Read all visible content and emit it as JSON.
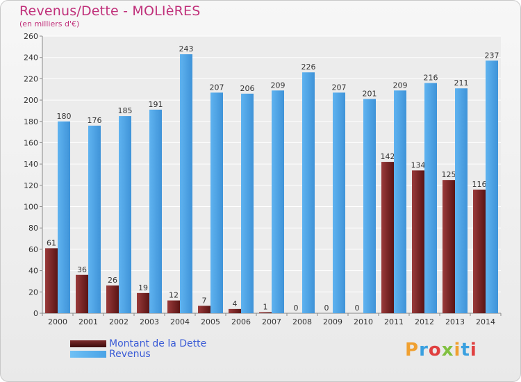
{
  "title": "Revenus/Dette - MOLIèRES",
  "subtitle": "(en milliers d'€)",
  "logo": "Proxiti",
  "colors": {
    "debt": "#7b2a2a",
    "revenue": "#4aa3e6",
    "title": "#c0307a",
    "legend_text": "#3a5bd6"
  },
  "chart_data": {
    "type": "bar",
    "categories": [
      "2000",
      "2001",
      "2002",
      "2003",
      "2004",
      "2005",
      "2006",
      "2007",
      "2008",
      "2009",
      "2010",
      "2011",
      "2012",
      "2013",
      "2014"
    ],
    "series": [
      {
        "name": "Montant de la Dette",
        "values": [
          61,
          36,
          26,
          19,
          12,
          7,
          4,
          1,
          0,
          0,
          0,
          142,
          134,
          125,
          116
        ]
      },
      {
        "name": "Revenus",
        "values": [
          180,
          176,
          185,
          191,
          243,
          207,
          206,
          209,
          226,
          207,
          201,
          209,
          216,
          211,
          237
        ]
      }
    ],
    "ylim": [
      0,
      260
    ],
    "yticks": [
      0,
      20,
      40,
      60,
      80,
      100,
      120,
      140,
      160,
      180,
      200,
      220,
      240,
      260
    ],
    "grid": true,
    "legend_position": "bottom-left"
  }
}
